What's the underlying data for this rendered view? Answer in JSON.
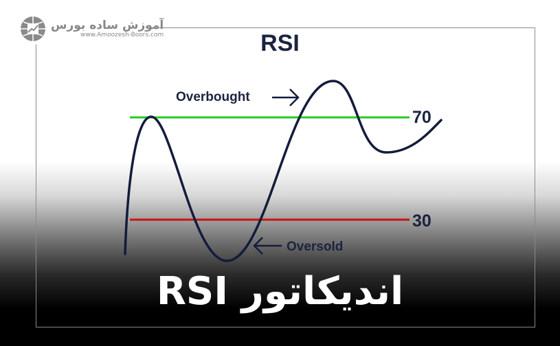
{
  "logo": {
    "name_fa": "آموزش ساده بورس",
    "url": "www.Amoozesh-Boors.com",
    "icon": "globe-chart-icon"
  },
  "title": "RSI",
  "levels": {
    "upper": "70",
    "lower": "30",
    "upper_color": "#22cc22",
    "lower_color": "#cc1111"
  },
  "annotations": {
    "overbought": "Overbought",
    "oversold": "Oversold"
  },
  "curve_color": "#141c3c",
  "headline": "اندیکاتور RSI"
}
